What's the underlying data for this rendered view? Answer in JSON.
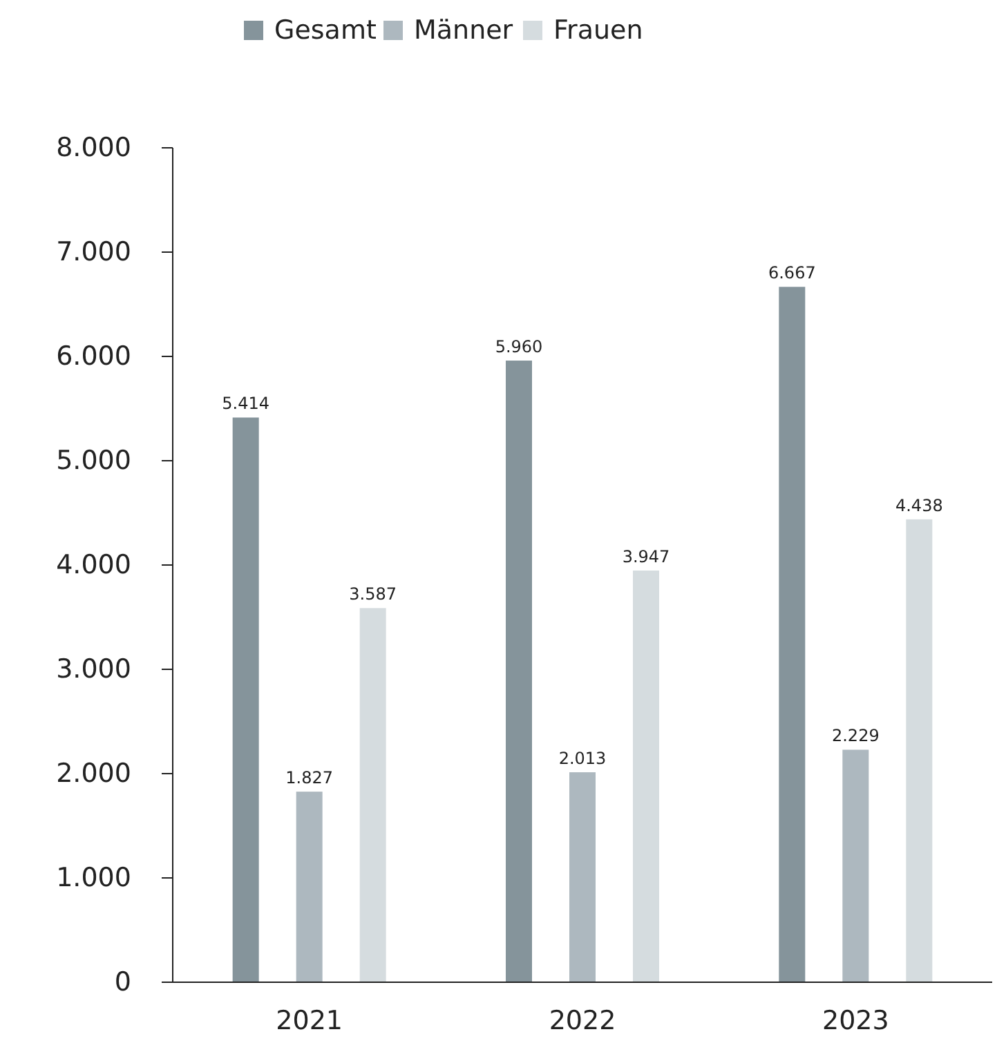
{
  "chart_data": {
    "type": "bar",
    "categories": [
      "2021",
      "2022",
      "2023"
    ],
    "series": [
      {
        "name": "Gesamt",
        "color": "#85949b",
        "values": [
          5414,
          5960,
          6667
        ],
        "value_labels": [
          "5.414",
          "5.960",
          "6.667"
        ]
      },
      {
        "name": "Männer",
        "color": "#adb8bf",
        "values": [
          1827,
          2013,
          2229
        ],
        "value_labels": [
          "1.827",
          "2.013",
          "2.229"
        ]
      },
      {
        "name": "Frauen",
        "color": "#d5dcdf",
        "values": [
          3587,
          3947,
          4438
        ],
        "value_labels": [
          "3.587",
          "3.947",
          "4.438"
        ]
      }
    ],
    "ylim": [
      0,
      8000
    ],
    "yticks": [
      {
        "value": 0,
        "label": "0"
      },
      {
        "value": 1000,
        "label": "1.000"
      },
      {
        "value": 2000,
        "label": "2.000"
      },
      {
        "value": 3000,
        "label": "3.000"
      },
      {
        "value": 4000,
        "label": "4.000"
      },
      {
        "value": 5000,
        "label": "5.000"
      },
      {
        "value": 6000,
        "label": "6.000"
      },
      {
        "value": 7000,
        "label": "7.000"
      },
      {
        "value": 8000,
        "label": "8.000"
      }
    ],
    "grid": false,
    "legend": "top"
  }
}
